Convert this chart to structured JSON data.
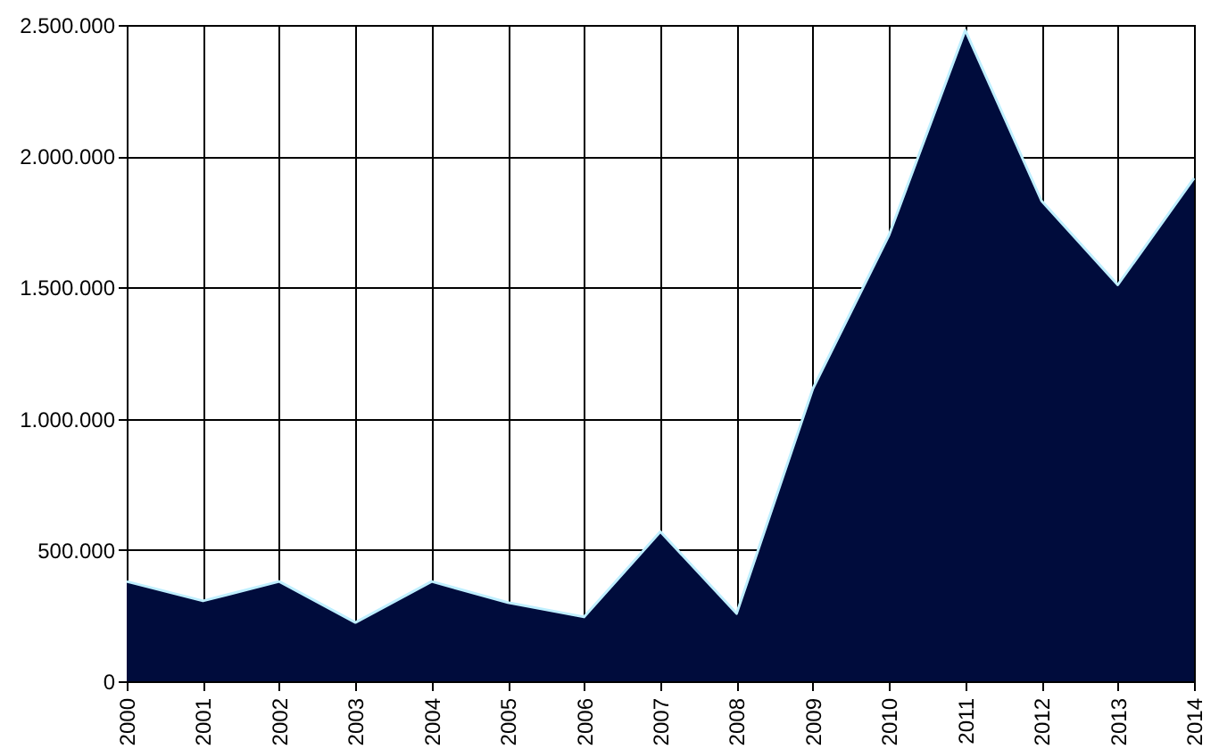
{
  "chart_data": {
    "type": "area",
    "categories": [
      "2000",
      "2001",
      "2002",
      "2003",
      "2004",
      "2005",
      "2006",
      "2007",
      "2008",
      "2009",
      "2010",
      "2011",
      "2012",
      "2013",
      "2014"
    ],
    "series": [
      {
        "color": "#000c3c",
        "values": [
          380000,
          306000,
          380000,
          224000,
          380000,
          300000,
          245000,
          570000,
          258000,
          1114000,
          1700000,
          2480000,
          1830000,
          1510000,
          1916000
        ]
      }
    ],
    "ylim": [
      0,
      2500000
    ],
    "yticks": [
      {
        "value": 0,
        "label": "0"
      },
      {
        "value": 500000,
        "label": "500.000"
      },
      {
        "value": 1000000,
        "label": "1.000.000"
      },
      {
        "value": 1500000,
        "label": "1.500.000"
      },
      {
        "value": 2000000,
        "label": "2.000.000"
      },
      {
        "value": 2500000,
        "label": "2.500.000"
      }
    ],
    "grid": true
  }
}
